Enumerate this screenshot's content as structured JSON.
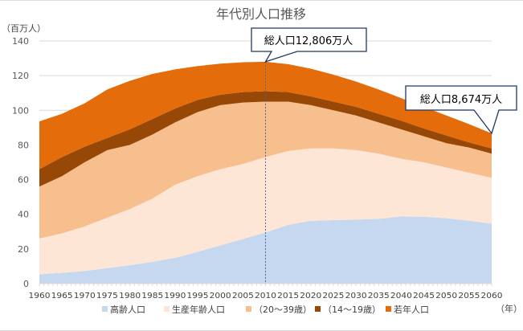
{
  "chart_data": {
    "type": "area",
    "stacked": true,
    "title": "年代別人口推移",
    "ylabel": "（百万人）",
    "xlabel": "（年）",
    "ylim": [
      0,
      140
    ],
    "yticks": [
      0,
      20,
      40,
      60,
      80,
      100,
      120,
      140
    ],
    "grid": true,
    "legend": "bottom",
    "x": [
      1960,
      1965,
      1970,
      1975,
      1980,
      1985,
      1990,
      1995,
      2000,
      2005,
      2010,
      2015,
      2020,
      2025,
      2030,
      2035,
      2040,
      2045,
      2050,
      2055,
      2060
    ],
    "series": [
      {
        "name": "高齢人口",
        "color": "#c5d8ef",
        "values": [
          5.4,
          6.2,
          7.3,
          8.9,
          10.6,
          12.5,
          14.9,
          18.3,
          22.0,
          25.7,
          29.5,
          33.9,
          36.2,
          36.6,
          36.9,
          37.4,
          38.7,
          38.6,
          37.7,
          36.3,
          34.6
        ]
      },
      {
        "name": "生産年齢人口",
        "color": "#fde6d6",
        "values": [
          20.6,
          22.8,
          25.7,
          29.1,
          32.4,
          36.5,
          42.1,
          43.7,
          44.0,
          43.3,
          43.5,
          42.6,
          41.8,
          41.4,
          40.1,
          37.6,
          33.3,
          31.4,
          29.3,
          27.7,
          26.4
        ]
      },
      {
        "name": "（20～39歳）",
        "color": "#f8bf8e",
        "values": [
          30,
          33,
          37,
          39,
          37,
          37,
          36,
          37,
          37,
          35.5,
          32,
          28.5,
          25,
          22,
          20,
          18,
          17,
          15,
          14,
          14.5,
          14
        ]
      },
      {
        "name": "（14～19歳）",
        "color": "#974706",
        "values": [
          10,
          11,
          9,
          7,
          9,
          9,
          8,
          7,
          6,
          6,
          6,
          5.5,
          5,
          5,
          5,
          5,
          5,
          4.5,
          4.5,
          3,
          3
        ]
      },
      {
        "name": "若年人口",
        "color": "#e46c0a",
        "values": [
          27.6,
          25,
          25,
          28,
          28,
          26,
          22.6,
          19.5,
          17.9,
          17.2,
          17,
          16.1,
          16,
          15.6,
          14.6,
          14,
          13,
          12.5,
          11.5,
          10.5,
          8.7
        ]
      }
    ],
    "annotations": [
      {
        "x": 2010,
        "text": "総人口12,806万人"
      },
      {
        "x": 2060,
        "text": "総人口8,674万人"
      }
    ]
  }
}
